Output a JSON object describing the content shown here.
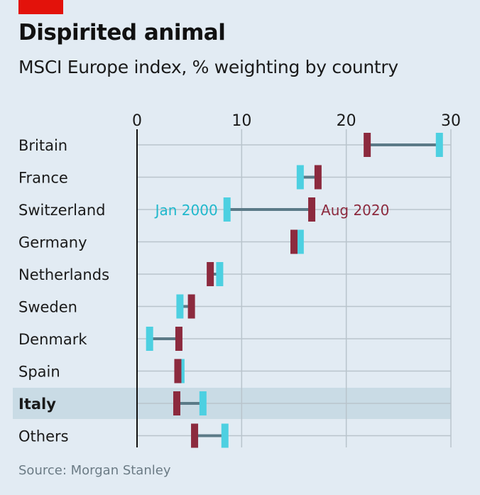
{
  "header": {
    "title": "Dispirited animal",
    "subtitle": "MSCI Europe index, % weighting by country"
  },
  "footer": {
    "source": "Source: Morgan Stanley"
  },
  "colors": {
    "background": "#e2ebf3",
    "brand_red": "#e3120b",
    "jan2000": "#4dd0e1",
    "aug2020": "#8c2a3e",
    "connector": "#5b7a87",
    "highlight": "#c9dbe5",
    "gridline": "#b9c4cc",
    "axis": "#111111"
  },
  "chart_data": {
    "type": "dumbbell",
    "title": "Dispirited animal",
    "subtitle": "MSCI Europe index, % weighting by country",
    "xlim": [
      0,
      30
    ],
    "xticks": [
      0,
      10,
      20,
      30
    ],
    "grid": true,
    "series": [
      {
        "key": "jan2000",
        "name": "Jan 2000",
        "label": "Jan 2000"
      },
      {
        "key": "aug2020",
        "name": "Aug 2020",
        "label": "Aug 2020"
      }
    ],
    "highlight_category": "Italy",
    "annotation_row": "Switzerland",
    "rows": [
      {
        "category": "Britain",
        "jan2000": 28.9,
        "aug2020": 22.0
      },
      {
        "category": "France",
        "jan2000": 15.6,
        "aug2020": 17.3
      },
      {
        "category": "Switzerland",
        "jan2000": 8.6,
        "aug2020": 16.7
      },
      {
        "category": "Germany",
        "jan2000": 15.6,
        "aug2020": 15.0
      },
      {
        "category": "Netherlands",
        "jan2000": 7.9,
        "aug2020": 7.0
      },
      {
        "category": "Sweden",
        "jan2000": 4.1,
        "aug2020": 5.2
      },
      {
        "category": "Denmark",
        "jan2000": 1.2,
        "aug2020": 4.0
      },
      {
        "category": "Spain",
        "jan2000": 4.2,
        "aug2020": 3.9
      },
      {
        "category": "Italy",
        "jan2000": 6.3,
        "aug2020": 3.8
      },
      {
        "category": "Others",
        "jan2000": 8.4,
        "aug2020": 5.5
      }
    ]
  }
}
